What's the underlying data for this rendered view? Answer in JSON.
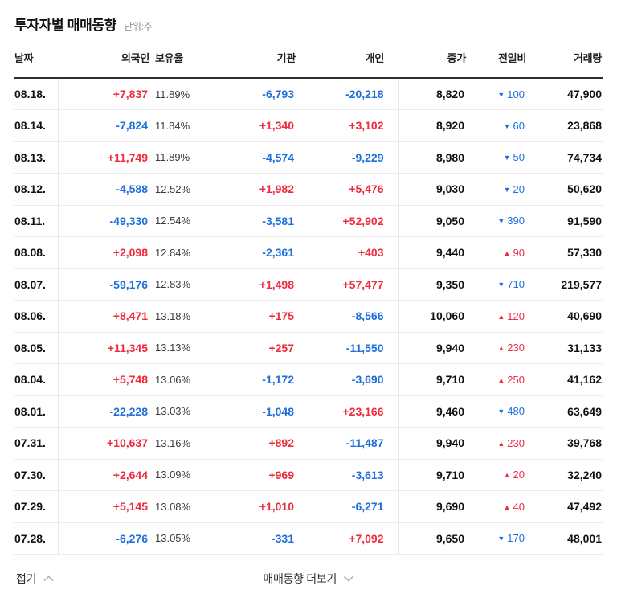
{
  "header": {
    "title": "투자자별 매매동향",
    "unit": "단위:주"
  },
  "colors": {
    "up": "#ef2b3e",
    "down": "#1d6fdb",
    "heading": "#111111",
    "divider": "#ececec",
    "header_rule": "#2e2e2e"
  },
  "icons": {
    "up_triangle": "▲",
    "down_triangle": "▼",
    "chevron_up": "chevron-up",
    "chevron_down": "chevron-down"
  },
  "table": {
    "columns": [
      "날짜",
      "외국인",
      "보유율",
      "기관",
      "개인",
      "종가",
      "전일비",
      "거래량"
    ],
    "rows": [
      {
        "date": "08.18.",
        "foreign": "+7,837",
        "ratio": "11.89%",
        "inst": "-6,793",
        "indiv": "-20,218",
        "close": "8,820",
        "change_dir": "down",
        "change": "100",
        "volume": "47,900"
      },
      {
        "date": "08.14.",
        "foreign": "-7,824",
        "ratio": "11.84%",
        "inst": "+1,340",
        "indiv": "+3,102",
        "close": "8,920",
        "change_dir": "down",
        "change": "60",
        "volume": "23,868"
      },
      {
        "date": "08.13.",
        "foreign": "+11,749",
        "ratio": "11.89%",
        "inst": "-4,574",
        "indiv": "-9,229",
        "close": "8,980",
        "change_dir": "down",
        "change": "50",
        "volume": "74,734"
      },
      {
        "date": "08.12.",
        "foreign": "-4,588",
        "ratio": "12.52%",
        "inst": "+1,982",
        "indiv": "+5,476",
        "close": "9,030",
        "change_dir": "down",
        "change": "20",
        "volume": "50,620"
      },
      {
        "date": "08.11.",
        "foreign": "-49,330",
        "ratio": "12.54%",
        "inst": "-3,581",
        "indiv": "+52,902",
        "close": "9,050",
        "change_dir": "down",
        "change": "390",
        "volume": "91,590"
      },
      {
        "date": "08.08.",
        "foreign": "+2,098",
        "ratio": "12.84%",
        "inst": "-2,361",
        "indiv": "+403",
        "close": "9,440",
        "change_dir": "up",
        "change": "90",
        "volume": "57,330"
      },
      {
        "date": "08.07.",
        "foreign": "-59,176",
        "ratio": "12.83%",
        "inst": "+1,498",
        "indiv": "+57,477",
        "close": "9,350",
        "change_dir": "down",
        "change": "710",
        "volume": "219,577"
      },
      {
        "date": "08.06.",
        "foreign": "+8,471",
        "ratio": "13.18%",
        "inst": "+175",
        "indiv": "-8,566",
        "close": "10,060",
        "change_dir": "up",
        "change": "120",
        "volume": "40,690"
      },
      {
        "date": "08.05.",
        "foreign": "+11,345",
        "ratio": "13.13%",
        "inst": "+257",
        "indiv": "-11,550",
        "close": "9,940",
        "change_dir": "up",
        "change": "230",
        "volume": "31,133"
      },
      {
        "date": "08.04.",
        "foreign": "+5,748",
        "ratio": "13.06%",
        "inst": "-1,172",
        "indiv": "-3,690",
        "close": "9,710",
        "change_dir": "up",
        "change": "250",
        "volume": "41,162"
      },
      {
        "date": "08.01.",
        "foreign": "-22,228",
        "ratio": "13.03%",
        "inst": "-1,048",
        "indiv": "+23,166",
        "close": "9,460",
        "change_dir": "down",
        "change": "480",
        "volume": "63,649"
      },
      {
        "date": "07.31.",
        "foreign": "+10,637",
        "ratio": "13.16%",
        "inst": "+892",
        "indiv": "-11,487",
        "close": "9,940",
        "change_dir": "up",
        "change": "230",
        "volume": "39,768"
      },
      {
        "date": "07.30.",
        "foreign": "+2,644",
        "ratio": "13.09%",
        "inst": "+969",
        "indiv": "-3,613",
        "close": "9,710",
        "change_dir": "up",
        "change": "20",
        "volume": "32,240"
      },
      {
        "date": "07.29.",
        "foreign": "+5,145",
        "ratio": "13.08%",
        "inst": "+1,010",
        "indiv": "-6,271",
        "close": "9,690",
        "change_dir": "up",
        "change": "40",
        "volume": "47,492"
      },
      {
        "date": "07.28.",
        "foreign": "-6,276",
        "ratio": "13.05%",
        "inst": "-331",
        "indiv": "+7,092",
        "close": "9,650",
        "change_dir": "down",
        "change": "170",
        "volume": "48,001"
      }
    ]
  },
  "footer": {
    "collapse_label": "접기",
    "more_label": "매매동향 더보기"
  }
}
